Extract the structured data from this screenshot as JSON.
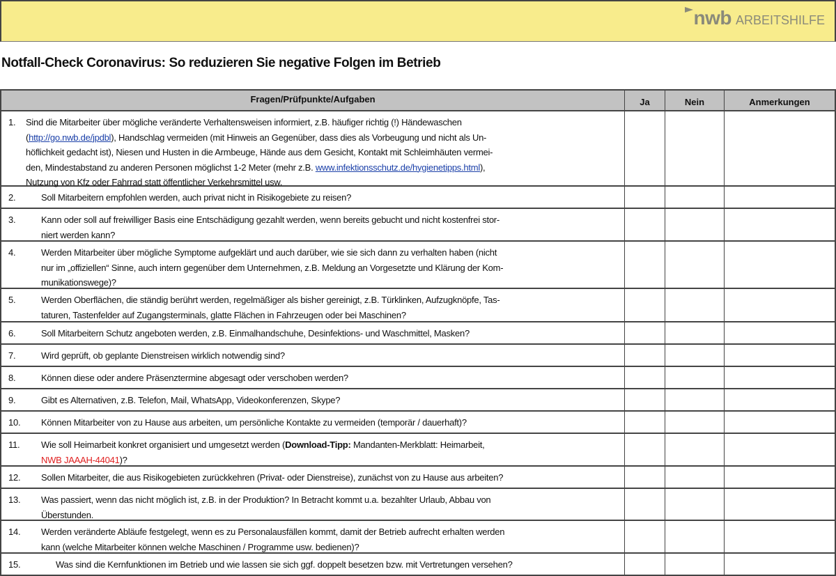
{
  "header": {
    "logo_brand": "nwb",
    "logo_label": "ARBEITSHILFE",
    "band_color": "#f8ec8c"
  },
  "title": "Notfall-Check Coronavirus: So reduzieren Sie negative Folgen im Betrieb",
  "columns": [
    "Fragen/Prüfpunkte/Aufgaben",
    "Ja",
    "Nein",
    "Anmerkungen"
  ],
  "rows": [
    {
      "num": "1.",
      "indent": 35,
      "height": 108,
      "lines": [
        [
          {
            "t": "Sind die Mitarbeiter über mögliche veränderte Verhaltensweisen informiert, z.B. häufiger richtig (!) Händewaschen"
          }
        ],
        [
          {
            "t": "("
          },
          {
            "t": "http://go.nwb.de/jpdbl",
            "k": "link"
          },
          {
            "t": "), Handschlag vermeiden (mit Hinweis an Gegenüber, dass dies als Vorbeugung und nicht als Un-"
          }
        ],
        [
          {
            "t": "höflichkeit gedacht ist), Niesen und Husten in die Armbeuge, Hände aus dem Gesicht, Kontakt mit Schleimhäuten vermei-"
          }
        ],
        [
          {
            "t": "den, Mindestabstand zu anderen Personen möglichst 1-2 Meter (mehr z.B. "
          },
          {
            "t": "www.infektionsschutz.de/hygienetipps.html",
            "k": "link"
          },
          {
            "t": "),"
          }
        ],
        [
          {
            "t": "Nutzung von Kfz oder Fahrrad statt öffentlicher Verkehrsmittel usw."
          }
        ]
      ]
    },
    {
      "num": "2.",
      "indent": 57,
      "height": 32,
      "lines": [
        [
          {
            "t": "Soll Mitarbeitern empfohlen werden, auch privat nicht in Risikogebiete zu reisen?"
          }
        ]
      ]
    },
    {
      "num": "3.",
      "indent": 57,
      "height": 47,
      "lines": [
        [
          {
            "t": "Kann oder soll auf freiwilliger Basis eine Entschädigung gezahlt werden, wenn bereits gebucht und nicht kostenfrei stor-"
          }
        ],
        [
          {
            "t": "niert werden kann?"
          }
        ]
      ]
    },
    {
      "num": "4.",
      "indent": 57,
      "height": 68,
      "lines": [
        [
          {
            "t": "Werden Mitarbeiter über mögliche Symptome aufgeklärt und auch darüber, wie sie sich dann zu verhalten haben (nicht"
          }
        ],
        [
          {
            "t": "nur im „offiziellen“ Sinne, auch intern gegenüber dem Unternehmen, z.B. Meldung an Vorgesetzte und Klärung der Kom-"
          }
        ],
        [
          {
            "t": "munikationswege)?"
          }
        ]
      ]
    },
    {
      "num": "5.",
      "indent": 57,
      "height": 48,
      "lines": [
        [
          {
            "t": "Werden Oberflächen, die ständig berührt werden, regelmäßiger als bisher gereinigt, z.B. Türklinken, Aufzugknöpfe, Tas-"
          }
        ],
        [
          {
            "t": "taturen, Tastenfelder auf Zugangsterminals, glatte Flächen in Fahrzeugen oder bei Maschinen?"
          }
        ]
      ]
    },
    {
      "num": "6.",
      "indent": 57,
      "height": 32,
      "lines": [
        [
          {
            "t": "Soll Mitarbeitern Schutz angeboten werden, z.B. Einmalhandschuhe, Desinfektions- und Waschmittel, Masken?"
          }
        ]
      ]
    },
    {
      "num": "7.",
      "indent": 57,
      "height": 32,
      "lines": [
        [
          {
            "t": "Wird geprüft, ob geplante Dienstreisen wirklich notwendig sind?"
          }
        ]
      ]
    },
    {
      "num": "8.",
      "indent": 57,
      "height": 32,
      "lines": [
        [
          {
            "t": "Können diese oder andere Präsenztermine abgesagt oder verschoben werden?"
          }
        ]
      ]
    },
    {
      "num": "9.",
      "indent": 57,
      "height": 32,
      "lines": [
        [
          {
            "t": "Gibt es Alternativen, z.B. Telefon, Mail, WhatsApp, Videokonferenzen, Skype?"
          }
        ]
      ]
    },
    {
      "num": "10.",
      "indent": 57,
      "height": 32,
      "lines": [
        [
          {
            "t": "Können Mitarbeiter von zu Hause aus arbeiten, um persönliche Kontakte zu vermeiden (temporär / dauerhaft)?"
          }
        ]
      ]
    },
    {
      "num": "11.",
      "indent": 57,
      "height": 47,
      "lines": [
        [
          {
            "t": "Wie soll Heimarbeit konkret organisiert und umgesetzt werden ("
          },
          {
            "t": "Download-Tipp:",
            "k": "b"
          },
          {
            "t": " Mandanten-Merkblatt: Heimarbeit,"
          }
        ],
        [
          {
            "t": "NWB JAAAH-44041",
            "k": "red"
          },
          {
            "t": ")?"
          }
        ]
      ]
    },
    {
      "num": "12.",
      "indent": 57,
      "height": 32,
      "lines": [
        [
          {
            "t": "Sollen Mitarbeiter, die aus Risikogebieten zurückkehren (Privat- oder Dienstreise), zunächst von zu Hause aus arbeiten?"
          }
        ]
      ]
    },
    {
      "num": "13.",
      "indent": 57,
      "height": 46,
      "lines": [
        [
          {
            "t": "Was passiert, wenn das nicht möglich ist, z.B. in der Produktion? In Betracht kommt u.a. bezahlter Urlaub, Abbau von"
          }
        ],
        [
          {
            "t": "Überstunden."
          }
        ]
      ]
    },
    {
      "num": "14.",
      "indent": 57,
      "height": 47,
      "lines": [
        [
          {
            "t": "Werden veränderte Abläufe festgelegt, wenn es zu Personalausfällen kommt, damit der Betrieb aufrecht erhalten werden"
          }
        ],
        [
          {
            "t": "kann (welche Mitarbeiter können welche Maschinen / Programme usw. bedienen)?"
          }
        ]
      ]
    },
    {
      "num": "15.",
      "indent": 78,
      "height": 32,
      "lines": [
        [
          {
            "t": "Was sind die Kernfunktionen im Betrieb und wie lassen sie sich ggf. doppelt besetzen bzw. mit Vertretungen versehen?"
          }
        ]
      ]
    }
  ]
}
